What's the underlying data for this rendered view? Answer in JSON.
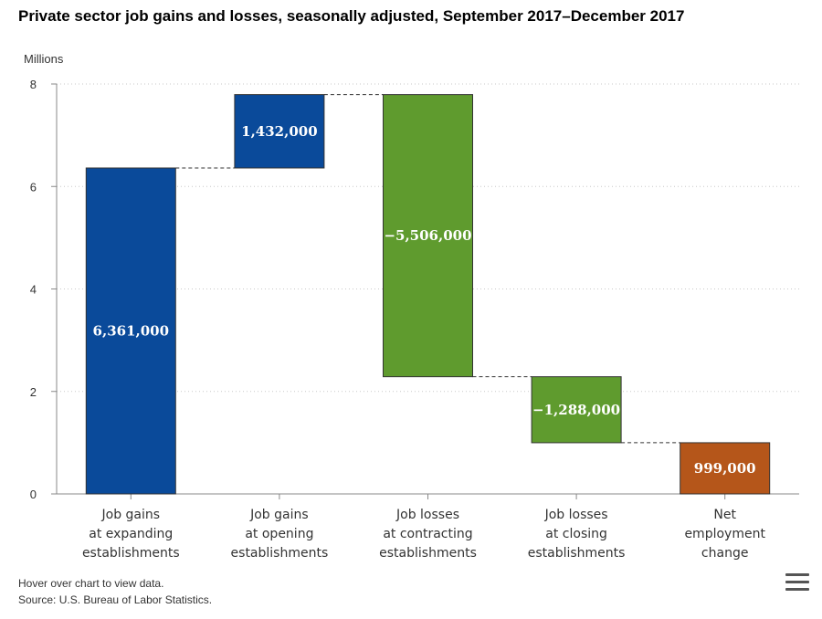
{
  "chart_data": {
    "type": "waterfall",
    "title": "Private sector job gains and losses, seasonally adjusted, September 2017–December 2017",
    "ylabel": "Millions",
    "ylim": [
      0,
      8
    ],
    "yticks": [
      "0",
      "2",
      "4",
      "6",
      "8"
    ],
    "grid": true,
    "categories": [
      [
        "Job gains",
        "at expanding",
        "establishments"
      ],
      [
        "Job gains",
        "at opening",
        "establishments"
      ],
      [
        "Job losses",
        "at contracting",
        "establishments"
      ],
      [
        "Job losses",
        "at closing",
        "establishments"
      ],
      [
        "Net",
        "employment",
        "change"
      ]
    ],
    "values": [
      6.361,
      1.432,
      -5.506,
      -1.288,
      0.999
    ],
    "data_labels": [
      "6,361,000",
      "1,432,000",
      "−5,506,000",
      "−1,288,000",
      "999,000"
    ],
    "colors": [
      "#0a4a9a",
      "#0a4a9a",
      "#5f9b2e",
      "#5f9b2e",
      "#b5561a"
    ]
  },
  "footer": {
    "hint": "Hover over chart to view data.",
    "source": "Source: U.S. Bureau of Labor Statistics."
  },
  "menu_icon": "hamburger-menu-icon"
}
